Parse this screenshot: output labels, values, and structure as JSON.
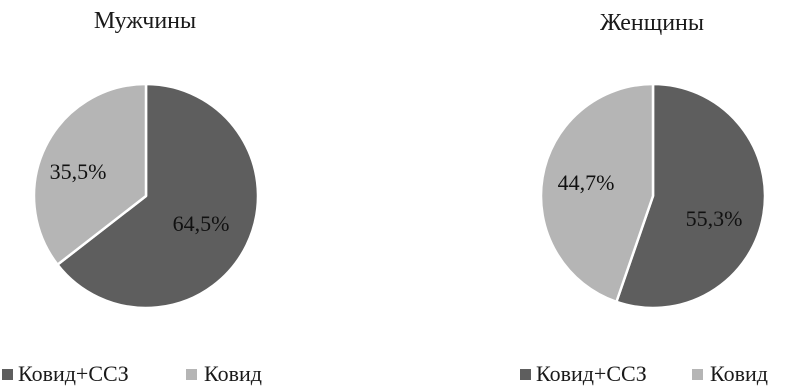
{
  "chart_data": [
    {
      "type": "pie",
      "title": "Мужчины",
      "categories": [
        "Ковид+ССЗ",
        "Ковид"
      ],
      "values": [
        64.5,
        35.5
      ],
      "labels": [
        "64,5%",
        "35,5%"
      ],
      "colors": [
        "#5e5e5e",
        "#b5b5b5"
      ],
      "legend": {
        "position": "bottom",
        "entries": [
          "Ковид+ССЗ",
          "Ковид"
        ]
      }
    },
    {
      "type": "pie",
      "title": "Женщины",
      "categories": [
        "Ковид+ССЗ",
        "Ковид"
      ],
      "values": [
        55.3,
        44.7
      ],
      "labels": [
        "55,3%",
        "44,7%"
      ],
      "colors": [
        "#5e5e5e",
        "#b5b5b5"
      ],
      "legend": {
        "position": "bottom",
        "entries": [
          "Ковид+ССЗ",
          "Ковид"
        ]
      }
    }
  ]
}
